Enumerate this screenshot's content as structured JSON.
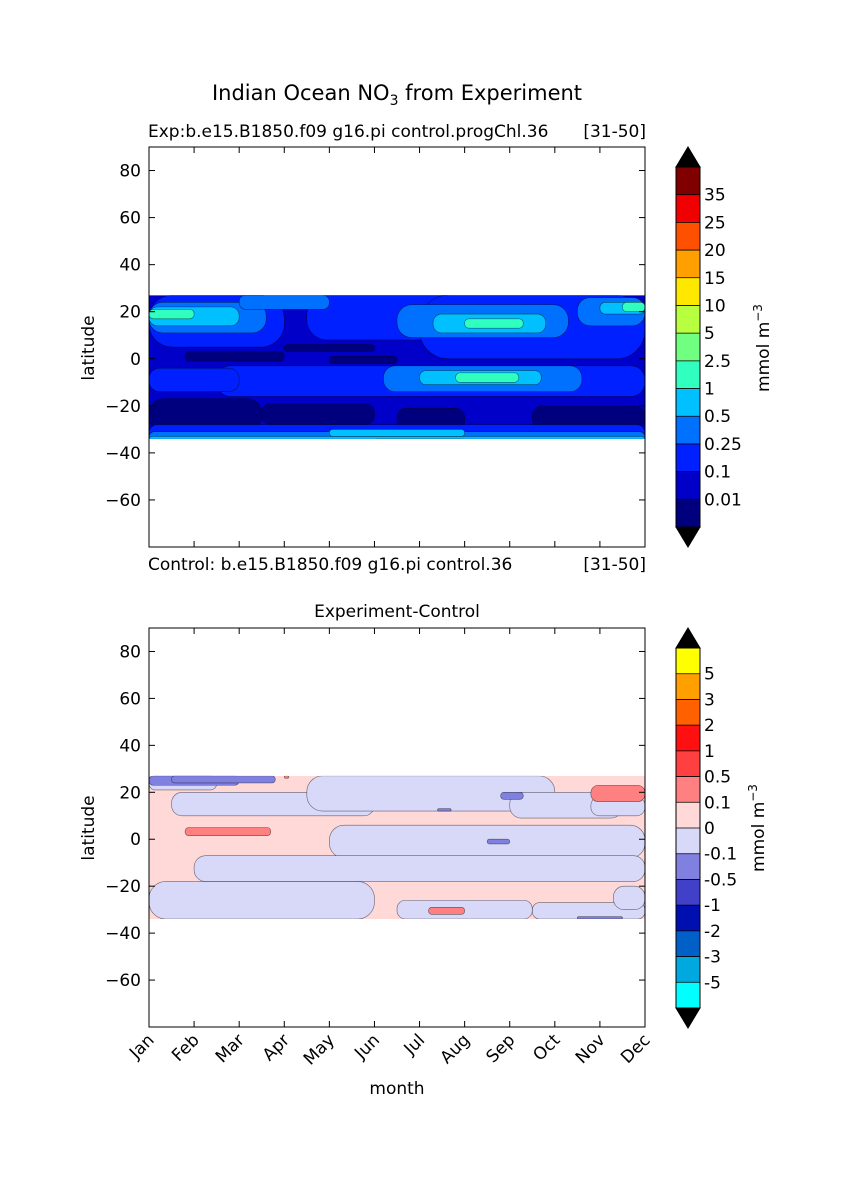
{
  "figure": {
    "title": "Indian Ocean NO",
    "title_sub": "3",
    "title_suffix": " from Experiment"
  },
  "chart_data": [
    {
      "type": "heatmap",
      "panel": "top",
      "title_left": "Exp:b.e15.B1850.f09 g16.pi control.progChl.36",
      "title_right": "[31-50]",
      "footer_left": "Control: b.e15.B1850.f09 g16.pi control.36",
      "footer_right": "[31-50]",
      "ylabel": "latitude",
      "xlabel": "",
      "xlim": [
        1,
        12
      ],
      "ylim": [
        -80,
        90
      ],
      "yticks": [
        80,
        60,
        40,
        20,
        0,
        -20,
        -40,
        -60
      ],
      "ytick_labels": [
        "80",
        "60",
        "40",
        "20",
        "0",
        "−20",
        "−40",
        "−60"
      ],
      "data_lat_range": [
        -34,
        27
      ],
      "colorbar": {
        "label": "mmol m",
        "label_sup": "−3",
        "levels": [
          "0.01",
          "0.1",
          "0.25",
          "0.5",
          "1",
          "2.5",
          "5",
          "10",
          "15",
          "20",
          "25",
          "35"
        ],
        "colors": [
          "#00007f",
          "#0000c8",
          "#0020ff",
          "#0070ff",
          "#00c0ff",
          "#30ffc0",
          "#70ff80",
          "#b8ff40",
          "#ffe800",
          "#ffa000",
          "#ff5000",
          "#f00000",
          "#800000"
        ]
      },
      "fields": [
        {
          "level": 1,
          "regions": [
            [
              1,
              -34,
              12,
              27
            ]
          ]
        },
        {
          "level": 0,
          "regions": [
            [
              1,
              -31,
              3.5,
              -17
            ],
            [
              3.5,
              -28,
              6,
              -19
            ],
            [
              6.5,
              -30,
              8,
              -21
            ],
            [
              9.5,
              -30,
              12,
              -20
            ],
            [
              1.8,
              -1,
              4,
              3
            ],
            [
              4,
              3,
              6,
              6
            ],
            [
              5,
              -2,
              6.5,
              1
            ]
          ]
        },
        {
          "level": 2,
          "regions": [
            [
              1,
              5,
              4,
              27
            ],
            [
              4.5,
              8,
              8,
              27
            ],
            [
              7,
              0,
              12,
              27
            ],
            [
              2.5,
              -16,
              12,
              -3
            ],
            [
              1,
              -36,
              12,
              -28
            ],
            [
              1,
              -14,
              3,
              -4
            ]
          ]
        },
        {
          "level": 3,
          "regions": [
            [
              1,
              11,
              3.6,
              24
            ],
            [
              6.2,
              -14,
              10.6,
              -3
            ],
            [
              6.5,
              9,
              10.3,
              23
            ],
            [
              10.5,
              14,
              12,
              26
            ],
            [
              1,
              -36,
              12,
              -31
            ],
            [
              3,
              21,
              5,
              27
            ]
          ]
        },
        {
          "level": 4,
          "regions": [
            [
              1,
              14,
              3,
              22
            ],
            [
              7,
              -11,
              9.7,
              -5
            ],
            [
              7.3,
              11,
              9.8,
              19
            ],
            [
              11,
              19,
              12,
              24
            ],
            [
              1,
              -36,
              12,
              -33
            ],
            [
              5,
              -33,
              8,
              -30
            ]
          ]
        },
        {
          "level": 5,
          "regions": [
            [
              1,
              17,
              2,
              21
            ],
            [
              7.8,
              -10,
              9.2,
              -6
            ],
            [
              8,
              13,
              9.3,
              17
            ],
            [
              11.5,
              20,
              12,
              24
            ],
            [
              6,
              -36,
              8,
              -34
            ]
          ]
        }
      ]
    },
    {
      "type": "heatmap",
      "panel": "bottom",
      "title": "Experiment-Control",
      "ylabel": "latitude",
      "xlabel": "month",
      "xlim": [
        1,
        12
      ],
      "ylim": [
        -80,
        90
      ],
      "xticks": [
        1,
        2,
        3,
        4,
        5,
        6,
        7,
        8,
        9,
        10,
        11,
        12
      ],
      "xtick_labels": [
        "Jan",
        "Feb",
        "Mar",
        "Apr",
        "May",
        "Jun",
        "Jul",
        "Aug",
        "Sep",
        "Oct",
        "Nov",
        "Dec"
      ],
      "yticks": [
        80,
        60,
        40,
        20,
        0,
        -20,
        -40,
        -60
      ],
      "ytick_labels": [
        "80",
        "60",
        "40",
        "20",
        "0",
        "−20",
        "−40",
        "−60"
      ],
      "data_lat_range": [
        -34,
        27
      ],
      "colorbar": {
        "label": "mmol m",
        "label_sup": "−3",
        "levels": [
          "-5",
          "-3",
          "-2",
          "-1",
          "-0.5",
          "-0.1",
          "0",
          "0.1",
          "0.5",
          "1",
          "2",
          "3",
          "5"
        ],
        "colors": [
          "#00ffff",
          "#00a8e0",
          "#0060c8",
          "#0010b0",
          "#4040c8",
          "#8080e0",
          "#d8d8f8",
          "#ffd8d8",
          "#ff8080",
          "#ff4040",
          "#ff1010",
          "#ff6000",
          "#ffa000",
          "#ffff00"
        ]
      },
      "fields": [
        {
          "level": 7,
          "regions": [
            [
              1,
              -34,
              12,
              27
            ]
          ]
        },
        {
          "level": 6,
          "regions": [
            [
              1.5,
              10,
              6,
              20
            ],
            [
              4.5,
              12,
              10,
              27
            ],
            [
              9,
              9,
              11.5,
              20
            ],
            [
              10.8,
              10,
              12,
              18
            ],
            [
              5,
              -8,
              12,
              6
            ],
            [
              2,
              -18,
              12,
              -7
            ],
            [
              1,
              -34,
              6,
              -18
            ],
            [
              6.5,
              -34,
              9.5,
              -26
            ],
            [
              9.5,
              -34,
              12,
              -27
            ],
            [
              1,
              21,
              2.5,
              27
            ],
            [
              11.3,
              -30,
              12,
              -20
            ]
          ]
        },
        {
          "level": 5,
          "regions": [
            [
              1,
              23,
              3,
              27
            ],
            [
              1.5,
              24,
              3.8,
              27
            ],
            [
              8.8,
              17,
              9.3,
              20
            ],
            [
              7.4,
              12,
              7.7,
              13
            ],
            [
              8.5,
              -2,
              9.0,
              0
            ],
            [
              10.5,
              -34,
              11.5,
              -33
            ]
          ]
        },
        {
          "level": 8,
          "regions": [
            [
              10.8,
              16,
              12,
              23
            ],
            [
              1.8,
              1.5,
              3.7,
              5
            ],
            [
              7.2,
              -32,
              8.0,
              -29
            ],
            [
              4,
              26,
              4.1,
              27
            ]
          ]
        }
      ]
    }
  ]
}
